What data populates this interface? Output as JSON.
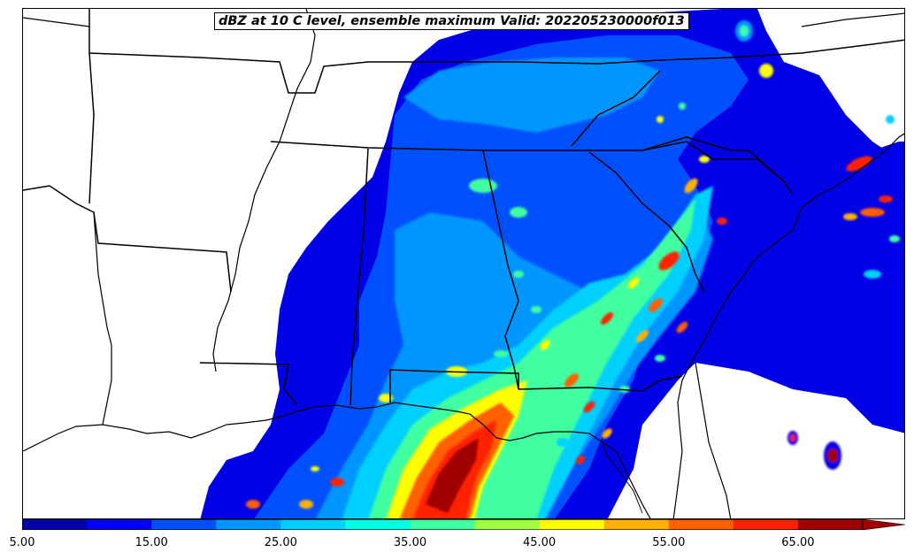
{
  "title": "dBZ at 10 C level, ensemble maximum Valid: 202205230000f013",
  "colorbar": {
    "min": 5,
    "max": 70,
    "step": 5,
    "extend": "max",
    "colors": [
      "#0000a8",
      "#0000ff",
      "#0050ff",
      "#0096ff",
      "#00d0ff",
      "#00ffe0",
      "#40ffa0",
      "#a0ff40",
      "#ffff00",
      "#ffb000",
      "#ff6000",
      "#ff2000",
      "#a00000"
    ],
    "extend_color": "#a00000",
    "tick_labels": [
      "5.00",
      "15.00",
      "25.00",
      "35.00",
      "45.00",
      "55.00",
      "65.00"
    ]
  }
}
